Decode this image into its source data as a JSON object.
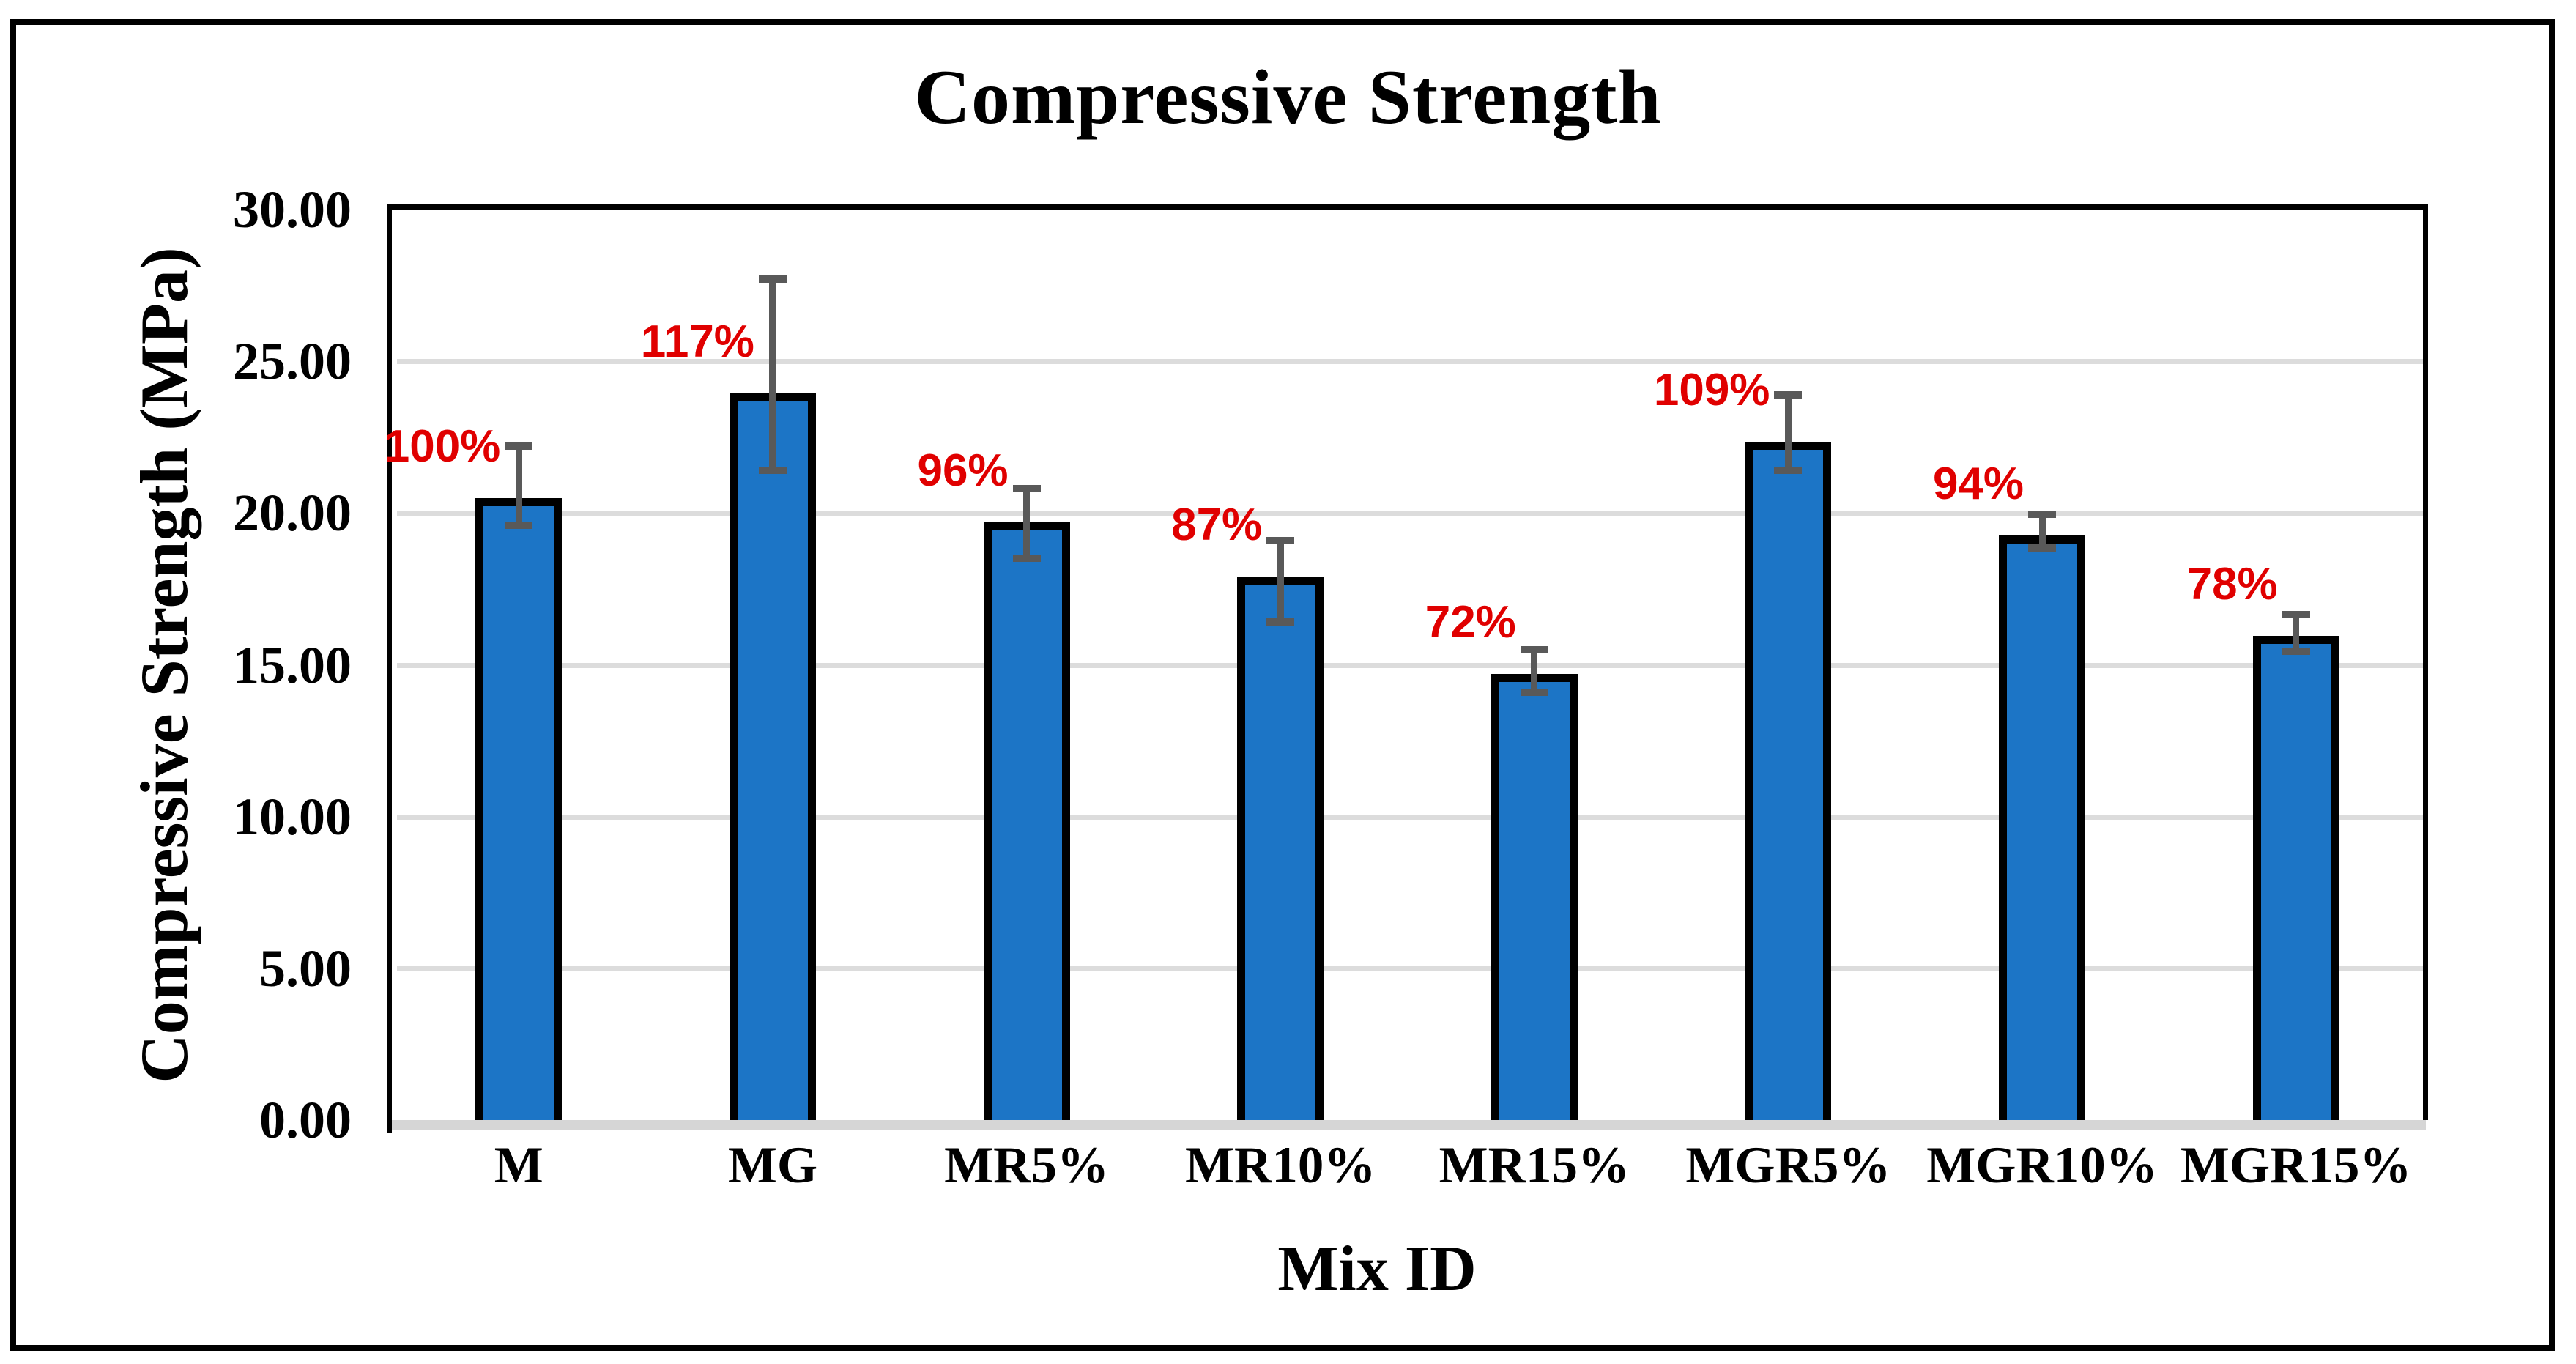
{
  "chart_data": {
    "type": "bar",
    "title": "Compressive Strength",
    "xlabel": "Mix ID",
    "ylabel": "Compressive Strength (MPa)",
    "ylim": [
      0,
      30
    ],
    "ytick_step": 5,
    "ytick_labels": [
      "0.00",
      "5.00",
      "10.00",
      "15.00",
      "20.00",
      "25.00",
      "30.00"
    ],
    "grid": "horizontal",
    "legend": "none",
    "categories": [
      "M",
      "MG",
      "MR5%",
      "MR10%",
      "MR15%",
      "MGR5%",
      "MGR10%",
      "MGR15%"
    ],
    "values": [
      20.5,
      23.95,
      19.7,
      17.9,
      14.7,
      22.35,
      19.25,
      15.95
    ],
    "error_high": [
      22.2,
      27.7,
      20.8,
      19.1,
      15.5,
      23.9,
      19.95,
      16.65
    ],
    "error_low": [
      19.6,
      21.4,
      18.5,
      16.4,
      14.1,
      21.4,
      18.85,
      15.45
    ],
    "bar_labels": [
      "100%",
      "117%",
      "96%",
      "87%",
      "72%",
      "109%",
      "94%",
      "78%"
    ],
    "colors": {
      "bar_fill": "#1C75C6",
      "bar_border": "#000000",
      "error_bar": "#595959",
      "gridline": "#DCDCDC",
      "baseline": "#D6D6D6",
      "bar_label": "#E00000",
      "text": "#000000",
      "background": "#FFFFFF"
    }
  }
}
